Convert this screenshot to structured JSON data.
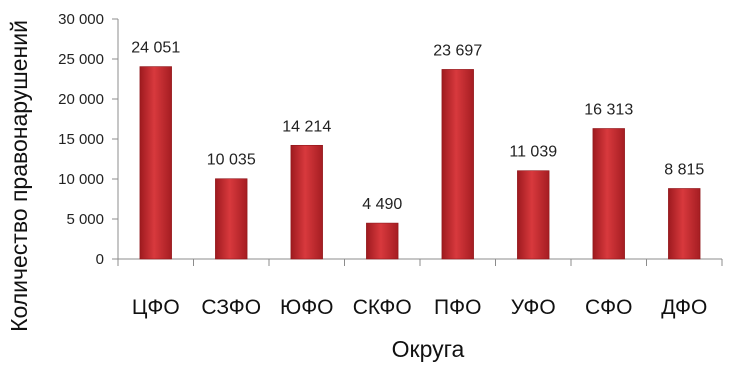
{
  "chart_data": {
    "type": "bar",
    "title": "",
    "xlabel": "Округа",
    "ylabel": "Количество правонарушений",
    "categories": [
      "ЦФО",
      "СЗФО",
      "ЮФО",
      "СКФО",
      "ПФО",
      "УФО",
      "СФО",
      "ДФО"
    ],
    "values": [
      24051,
      10035,
      14214,
      4490,
      23697,
      11039,
      16313,
      8815
    ],
    "data_labels": [
      "24 051",
      "10 035",
      "14 214",
      "4 490",
      "23 697",
      "11 039",
      "16 313",
      "8 815"
    ],
    "yticks": [
      0,
      5000,
      10000,
      15000,
      20000,
      25000,
      30000
    ],
    "ytick_labels": [
      "0",
      "5 000",
      "10 000",
      "15 000",
      "20 000",
      "25 000",
      "30 000"
    ],
    "ylim": [
      0,
      30000
    ],
    "grid": false,
    "legend": "none",
    "bar_color": "#c0282d"
  }
}
